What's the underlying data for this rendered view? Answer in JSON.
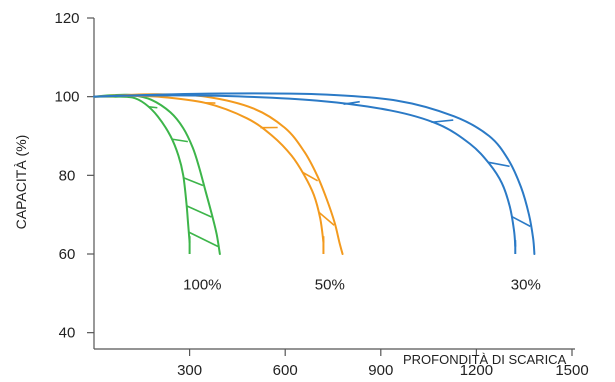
{
  "chart_data": {
    "type": "line",
    "title": "",
    "xlabel": "",
    "ylabel": "CAPACITÀ (%)",
    "xlim": [
      0,
      1500
    ],
    "ylim": [
      30,
      120
    ],
    "xticks": [
      300,
      600,
      900,
      1200,
      1500
    ],
    "yticks": [
      40,
      60,
      80,
      100,
      120
    ],
    "xtick_labels": [
      "300",
      "600",
      "900",
      "1200",
      "1500"
    ],
    "ytick_labels": [
      "40",
      "60",
      "80",
      "100",
      "120"
    ],
    "grid": false,
    "annotations": [
      {
        "text": "PROFONDITÀ DI SCARICA",
        "x": 1200,
        "y": 32
      }
    ],
    "series": [
      {
        "name": "100%",
        "color": "#3db54a",
        "label_pos": {
          "x": 340,
          "y": 51
        },
        "upper": [
          [
            0,
            100
          ],
          [
            60,
            100.4
          ],
          [
            120,
            100.4
          ],
          [
            180,
            99.2
          ],
          [
            240,
            96
          ],
          [
            280,
            92
          ],
          [
            310,
            87
          ],
          [
            330,
            82
          ],
          [
            350,
            76
          ],
          [
            370,
            70
          ],
          [
            385,
            65
          ],
          [
            395,
            60
          ]
        ],
        "lower": [
          [
            0,
            100
          ],
          [
            60,
            100
          ],
          [
            120,
            99.8
          ],
          [
            160,
            98.2
          ],
          [
            200,
            95
          ],
          [
            240,
            90
          ],
          [
            265,
            85
          ],
          [
            280,
            80
          ],
          [
            290,
            73
          ],
          [
            295,
            68
          ],
          [
            300,
            63
          ]
        ],
        "hatch": [
          [
            0.28,
            0.28
          ],
          [
            0.48,
            0.48
          ],
          [
            0.68,
            0.68
          ],
          [
            0.82,
            0.82
          ],
          [
            0.95,
            0.95
          ]
        ]
      },
      {
        "name": "50%",
        "color": "#f39a1e",
        "label_pos": {
          "x": 740,
          "y": 51
        },
        "upper": [
          [
            0,
            100
          ],
          [
            100,
            100.4
          ],
          [
            200,
            100.6
          ],
          [
            350,
            100
          ],
          [
            500,
            97
          ],
          [
            600,
            92
          ],
          [
            660,
            86
          ],
          [
            700,
            80
          ],
          [
            730,
            74
          ],
          [
            755,
            68
          ],
          [
            770,
            63
          ],
          [
            780,
            60
          ]
        ],
        "lower": [
          [
            0,
            100
          ],
          [
            100,
            100.2
          ],
          [
            200,
            100
          ],
          [
            350,
            98.4
          ],
          [
            480,
            94.5
          ],
          [
            560,
            90
          ],
          [
            620,
            85
          ],
          [
            660,
            80
          ],
          [
            690,
            75
          ],
          [
            710,
            69
          ],
          [
            720,
            63
          ]
        ],
        "hatch": [
          [
            0.36,
            0.36
          ],
          [
            0.56,
            0.56
          ],
          [
            0.76,
            0.76
          ],
          [
            0.9,
            0.9
          ]
        ]
      },
      {
        "name": "30%",
        "color": "#2b7ac6",
        "label_pos": {
          "x": 1355,
          "y": 51
        },
        "upper": [
          [
            0,
            100
          ],
          [
            150,
            100.4
          ],
          [
            400,
            100.8
          ],
          [
            700,
            100.6
          ],
          [
            950,
            99
          ],
          [
            1130,
            95
          ],
          [
            1240,
            90
          ],
          [
            1300,
            84
          ],
          [
            1340,
            77
          ],
          [
            1365,
            70
          ],
          [
            1378,
            64
          ],
          [
            1382,
            60
          ]
        ],
        "lower": [
          [
            0,
            100
          ],
          [
            150,
            100.3
          ],
          [
            400,
            100.2
          ],
          [
            700,
            99
          ],
          [
            930,
            96.5
          ],
          [
            1080,
            93
          ],
          [
            1180,
            88
          ],
          [
            1240,
            83
          ],
          [
            1280,
            78
          ],
          [
            1305,
            72
          ],
          [
            1318,
            66
          ],
          [
            1322,
            62
          ]
        ],
        "hatch": [
          [
            0.5,
            0.5
          ],
          [
            0.68,
            0.68
          ],
          [
            0.82,
            0.82
          ],
          [
            0.94,
            0.94
          ]
        ]
      }
    ]
  }
}
